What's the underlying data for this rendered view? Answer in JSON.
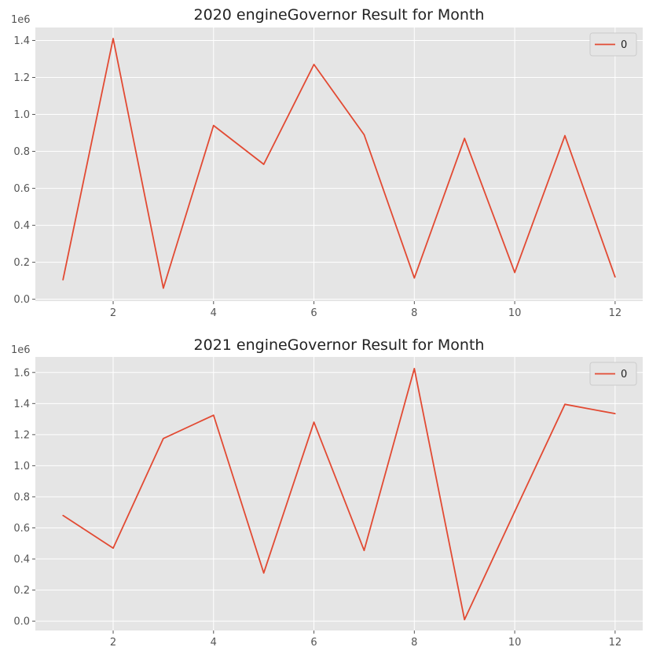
{
  "chart_data": [
    {
      "type": "line",
      "title": "2020 engineGovernor Result for Month",
      "xlabel": "",
      "ylabel": "",
      "y_offset_label": "1e6",
      "xlim": [
        0.45,
        12.55
      ],
      "ylim": [
        -0.01,
        1.47
      ],
      "x_ticks": [
        2,
        4,
        6,
        8,
        10,
        12
      ],
      "y_ticks": [
        0.0,
        0.2,
        0.4,
        0.6,
        0.8,
        1.0,
        1.2,
        1.4
      ],
      "y_tick_labels": [
        "0.0",
        "0.2",
        "0.4",
        "0.6",
        "0.8",
        "1.0",
        "1.2",
        "1.4"
      ],
      "grid": true,
      "legend_position": "top-right",
      "x": [
        1,
        2,
        3,
        4,
        5,
        6,
        7,
        8,
        9,
        10,
        11,
        12
      ],
      "series": [
        {
          "name": "0",
          "color": "#e24a33",
          "values": [
            0.105,
            1.41,
            0.06,
            0.94,
            0.73,
            1.27,
            0.89,
            0.115,
            0.87,
            0.145,
            0.885,
            0.12
          ]
        }
      ]
    },
    {
      "type": "line",
      "title": "2021 engineGovernor Result for Month",
      "xlabel": "",
      "ylabel": "",
      "y_offset_label": "1e6",
      "xlim": [
        0.45,
        12.55
      ],
      "ylim": [
        -0.06,
        1.7
      ],
      "x_ticks": [
        2,
        4,
        6,
        8,
        10,
        12
      ],
      "y_ticks": [
        0.0,
        0.2,
        0.4,
        0.6,
        0.8,
        1.0,
        1.2,
        1.4,
        1.6
      ],
      "y_tick_labels": [
        "0.0",
        "0.2",
        "0.4",
        "0.6",
        "0.8",
        "1.0",
        "1.2",
        "1.4",
        "1.6"
      ],
      "grid": true,
      "legend_position": "top-right",
      "x": [
        1,
        2,
        3,
        4,
        5,
        6,
        7,
        8,
        9,
        10,
        11,
        12
      ],
      "series": [
        {
          "name": "0",
          "color": "#e24a33",
          "values": [
            0.68,
            0.47,
            1.175,
            1.325,
            0.31,
            1.28,
            0.455,
            1.625,
            0.01,
            0.705,
            1.395,
            1.335
          ]
        }
      ]
    }
  ]
}
